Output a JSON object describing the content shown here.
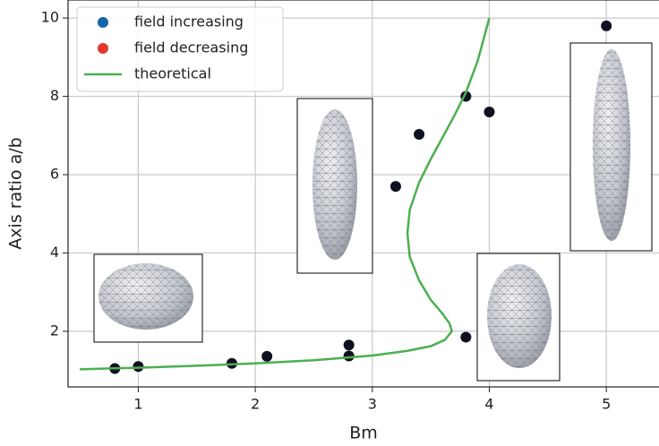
{
  "chart_data": {
    "type": "scatter",
    "x_label": "Bm",
    "y_label": "Axis ratio a/b",
    "xlim": [
      0.4,
      5.45
    ],
    "ylim": [
      0.58,
      10.46
    ],
    "xticks": [
      1,
      2,
      3,
      4,
      5
    ],
    "yticks": [
      2,
      4,
      6,
      8,
      10
    ],
    "grid": true,
    "legend": "upper left",
    "marker_color": "#0f1020",
    "series": [
      {
        "name": "field increasing",
        "color": "#1764ab",
        "x": [
          0.8,
          1.0,
          1.8,
          2.1,
          2.8,
          2.8,
          3.2,
          3.4,
          3.8,
          4.0,
          3.8,
          5.0
        ],
        "values": [
          1.05,
          1.1,
          1.18,
          1.36,
          1.65,
          1.37,
          5.7,
          7.03,
          8.0,
          7.6,
          1.85,
          9.8
        ]
      },
      {
        "name": "field decreasing",
        "color": "#e4382c",
        "x": [],
        "values": []
      },
      {
        "name": "theoretical",
        "type": "line",
        "color": "#4caf50",
        "x": [
          0.5,
          1.0,
          1.5,
          2.0,
          2.5,
          3.0,
          3.3,
          3.5,
          3.62,
          3.68,
          3.66,
          3.6,
          3.5,
          3.4,
          3.32,
          3.3,
          3.32,
          3.4,
          3.5,
          3.6,
          3.7,
          3.8,
          3.9,
          4.0
        ],
        "values": [
          1.03,
          1.07,
          1.12,
          1.18,
          1.26,
          1.38,
          1.5,
          1.62,
          1.78,
          2.0,
          2.2,
          2.45,
          2.8,
          3.3,
          3.9,
          4.5,
          5.1,
          5.8,
          6.4,
          6.95,
          7.5,
          8.1,
          8.9,
          10.0
        ]
      }
    ]
  }
}
